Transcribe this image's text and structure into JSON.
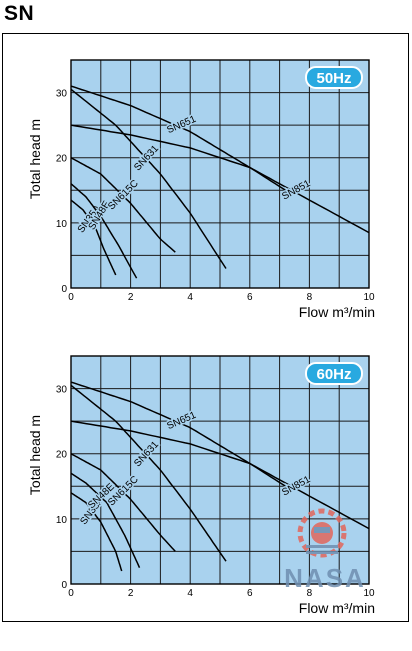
{
  "page": {
    "title": "SN"
  },
  "chart_data": [
    {
      "type": "line",
      "badge": "50Hz",
      "ylabel": "Total head  m",
      "xlabel": "Flow  m³/min",
      "xlim": [
        0,
        10
      ],
      "ylim": [
        0,
        35
      ],
      "xticks": [
        0,
        2,
        4,
        6,
        8,
        10
      ],
      "yticks": [
        0,
        10,
        20,
        30
      ],
      "grid": true,
      "series": [
        {
          "name": "SN35A",
          "points": [
            [
              0,
              13.5
            ],
            [
              0.4,
              12.0
            ],
            [
              0.8,
              9.5
            ],
            [
              1.1,
              6.0
            ],
            [
              1.5,
              2.0
            ]
          ]
        },
        {
          "name": "SN48E",
          "points": [
            [
              0,
              16.0
            ],
            [
              0.5,
              14.0
            ],
            [
              1.0,
              11.0
            ],
            [
              1.6,
              6.5
            ],
            [
              2.2,
              1.5
            ]
          ]
        },
        {
          "name": "SN615C",
          "points": [
            [
              0,
              20.0
            ],
            [
              1.0,
              17.5
            ],
            [
              2.0,
              13.0
            ],
            [
              3.0,
              7.5
            ],
            [
              3.5,
              5.5
            ]
          ]
        },
        {
          "name": "SN631",
          "points": [
            [
              0,
              30.5
            ],
            [
              1.5,
              25.0
            ],
            [
              3.0,
              17.5
            ],
            [
              4.0,
              11.5
            ],
            [
              5.2,
              3.0
            ]
          ]
        },
        {
          "name": "SN651",
          "points": [
            [
              0,
              31.0
            ],
            [
              2.0,
              28.0
            ],
            [
              4.0,
              24.0
            ],
            [
              6.0,
              18.5
            ],
            [
              7.2,
              15.0
            ]
          ]
        },
        {
          "name": "SN851",
          "points": [
            [
              0,
              25.0
            ],
            [
              2.0,
              23.5
            ],
            [
              4.0,
              21.5
            ],
            [
              6.0,
              18.5
            ],
            [
              8.0,
              13.5
            ],
            [
              10,
              8.5
            ]
          ]
        }
      ]
    },
    {
      "type": "line",
      "badge": "60Hz",
      "ylabel": "Total head  m",
      "xlabel": "Flow  m³/min",
      "xlim": [
        0,
        10
      ],
      "ylim": [
        0,
        35
      ],
      "xticks": [
        0,
        2,
        4,
        6,
        8,
        10
      ],
      "yticks": [
        0,
        10,
        20,
        30
      ],
      "grid": true,
      "series": [
        {
          "name": "SN35A",
          "points": [
            [
              0,
              14.0
            ],
            [
              0.5,
              12.5
            ],
            [
              1.0,
              9.5
            ],
            [
              1.5,
              5.0
            ],
            [
              1.7,
              2.0
            ]
          ]
        },
        {
          "name": "SN48E",
          "points": [
            [
              0,
              17.0
            ],
            [
              0.5,
              15.5
            ],
            [
              1.2,
              12.5
            ],
            [
              1.8,
              7.5
            ],
            [
              2.3,
              2.5
            ]
          ]
        },
        {
          "name": "SN615C",
          "points": [
            [
              0,
              20.0
            ],
            [
              1.0,
              17.5
            ],
            [
              2.0,
              13.0
            ],
            [
              3.0,
              7.5
            ],
            [
              3.5,
              5.0
            ]
          ]
        },
        {
          "name": "SN631",
          "points": [
            [
              0,
              30.5
            ],
            [
              1.5,
              25.0
            ],
            [
              3.0,
              17.5
            ],
            [
              4.0,
              11.5
            ],
            [
              5.2,
              3.5
            ]
          ]
        },
        {
          "name": "SN651",
          "points": [
            [
              0,
              31.0
            ],
            [
              2.0,
              28.0
            ],
            [
              4.0,
              24.0
            ],
            [
              6.0,
              18.5
            ],
            [
              7.2,
              15.0
            ]
          ]
        },
        {
          "name": "SN851",
          "points": [
            [
              0,
              25.0
            ],
            [
              2.0,
              23.5
            ],
            [
              4.0,
              21.5
            ],
            [
              6.0,
              18.5
            ],
            [
              8.0,
              13.5
            ],
            [
              10,
              8.5
            ]
          ]
        }
      ]
    }
  ],
  "watermark": {
    "text": "NASA",
    "color": "#e2665c"
  }
}
